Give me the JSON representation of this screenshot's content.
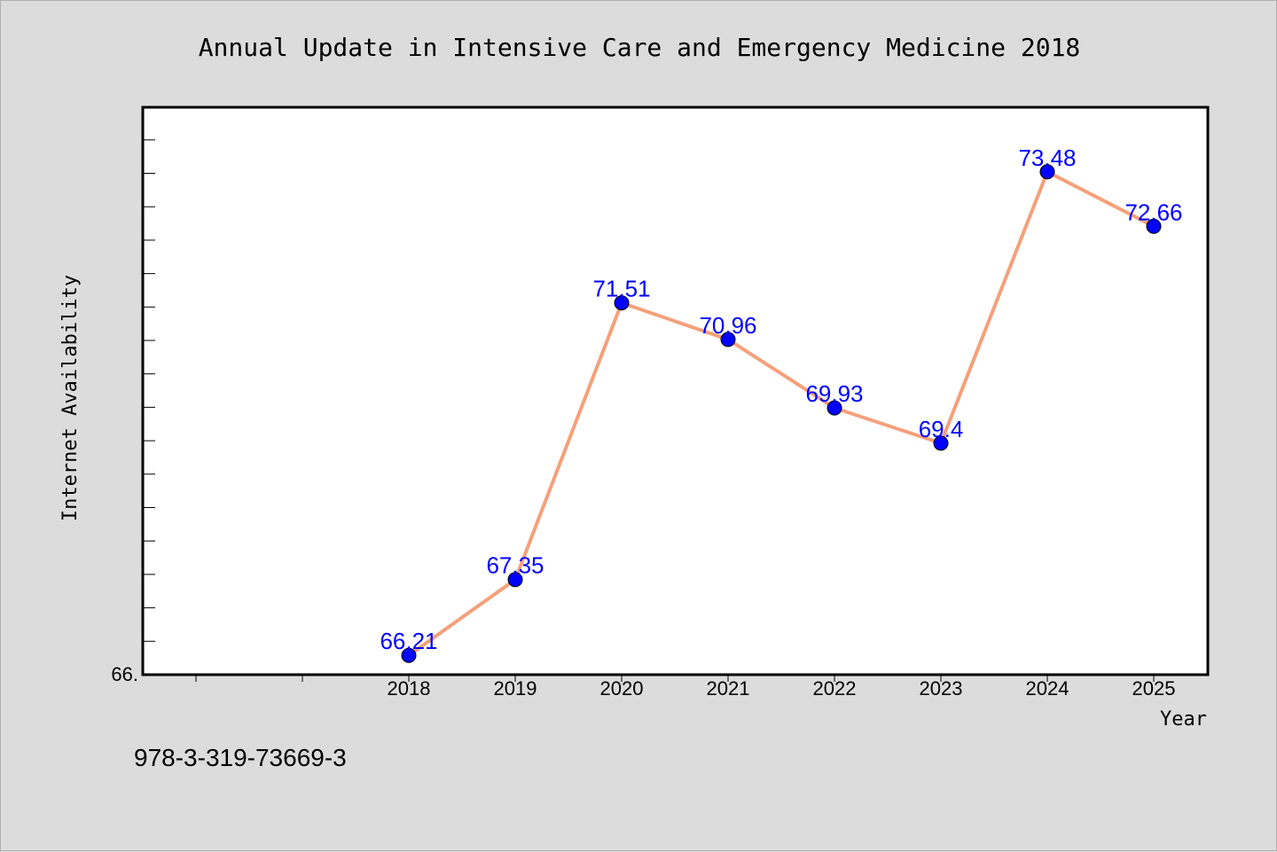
{
  "chart_data": {
    "type": "line",
    "title": "Annual Update in Intensive Care and Emergency Medicine 2018",
    "xlabel": "Year",
    "ylabel": "Internet Availability",
    "categories": [
      "2018",
      "2019",
      "2020",
      "2021",
      "2022",
      "2023",
      "2024",
      "2025"
    ],
    "series": [
      {
        "values": [
          66.21,
          67.35,
          71.51,
          70.96,
          69.93,
          69.4,
          73.48,
          72.66
        ]
      }
    ],
    "data_labels": [
      "66.21",
      "67.35",
      "71.51",
      "70.96",
      "69.93",
      "69.4",
      "73.48",
      "72.66"
    ],
    "y_tick_label": "66.",
    "ylim": [
      65.92,
      74.45
    ],
    "grid": false,
    "line_color": "#f5a07a",
    "marker_color": "#0000ff",
    "label_color": "#0000ff"
  },
  "footer": {
    "isbn": "978-3-319-73669-3"
  }
}
